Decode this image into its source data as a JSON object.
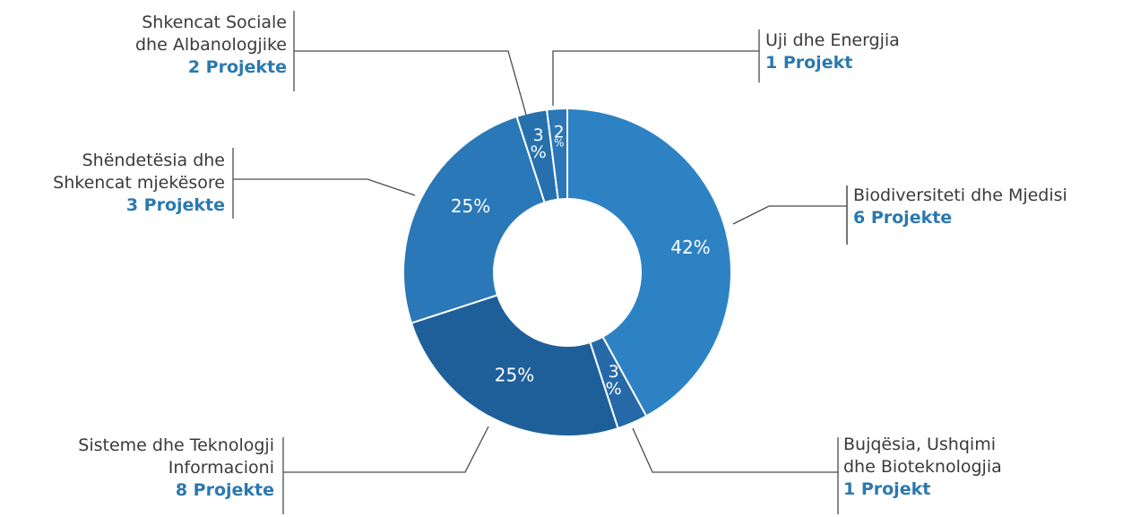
{
  "chart_data": {
    "type": "pie",
    "donut": true,
    "slices": [
      {
        "name": "Biodiversiteti dhe Mjedisi",
        "name_lines": [
          "Biodiversiteti dhe Mjedisi"
        ],
        "count_label": "6 Projekte",
        "percent_label": "42%",
        "value": 42,
        "color": "#2d82c4"
      },
      {
        "name": "Bujqësia, Ushqimi dhe Bioteknologjia",
        "name_lines": [
          "Bujqësia, Ushqimi",
          "dhe Bioteknologjia"
        ],
        "count_label": "1 Projekt",
        "percent_label": "3 %",
        "value": 3,
        "color": "#2669a8"
      },
      {
        "name": "Sisteme dhe Teknologji Informacioni",
        "name_lines": [
          "Sisteme dhe Teknologji",
          "Informacioni"
        ],
        "count_label": "8 Projekte",
        "percent_label": "25%",
        "value": 25,
        "color": "#1e5f9a"
      },
      {
        "name": "Shëndetësia dhe Shkencat mjekësore",
        "name_lines": [
          "Shëndetësia dhe",
          "Shkencat mjekësore"
        ],
        "count_label": "3 Projekte",
        "percent_label": "25%",
        "value": 25,
        "color": "#2a78b8"
      },
      {
        "name": "Shkencat Sociale dhe Albanologjike",
        "name_lines": [
          "Shkencat Sociale",
          "dhe Albanologjike"
        ],
        "count_label": "2 Projekte",
        "percent_label": "3 %",
        "value": 3,
        "color": "#2770ae"
      },
      {
        "name": "Uji dhe Energjia",
        "name_lines": [
          "Uji dhe Energjia"
        ],
        "count_label": "1 Projekt",
        "percent_label": "2 %",
        "value": 2,
        "color": "#2a76b6"
      }
    ],
    "slice_border_color": "#ffffff",
    "label_color": "#3a3a3a",
    "count_color": "#2b78b0"
  }
}
